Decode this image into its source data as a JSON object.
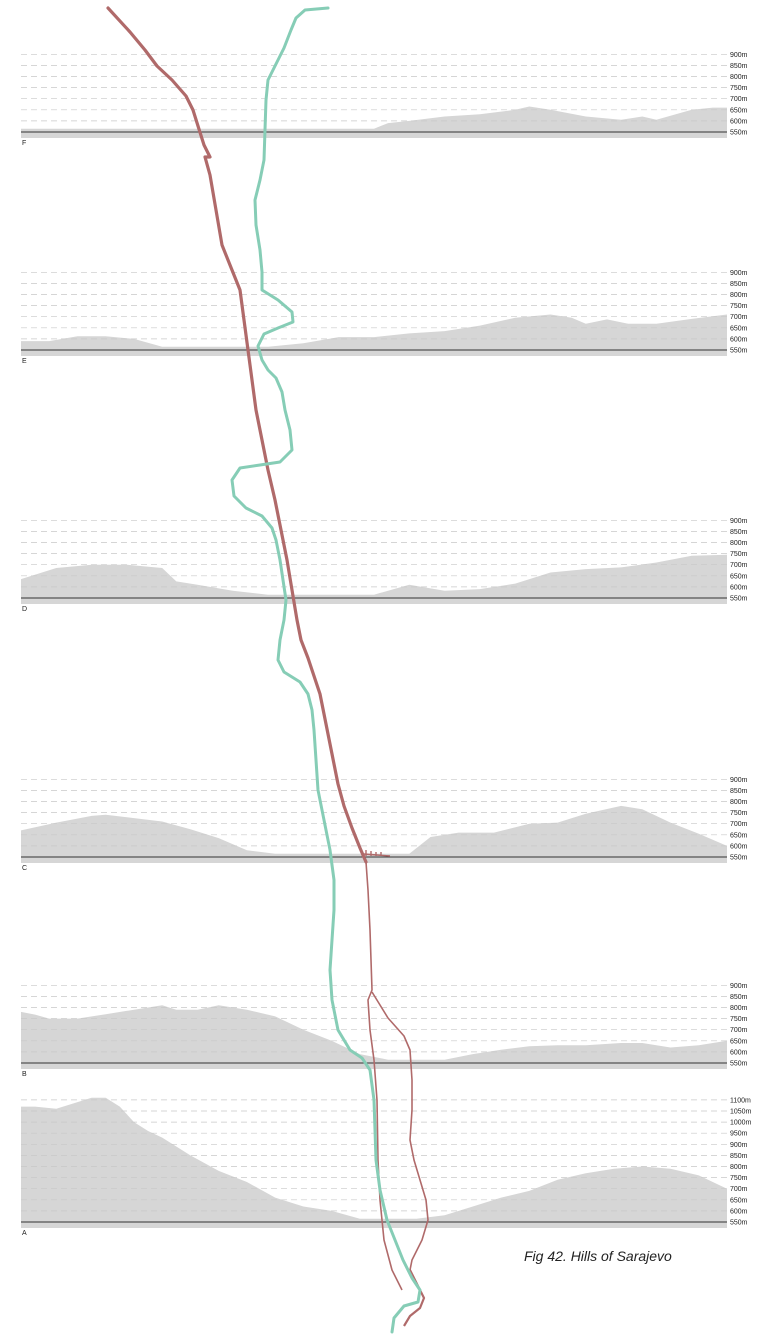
{
  "caption": "Fig 42. Hills of Sarajevo",
  "colors": {
    "terrain": "#d6d6d6",
    "grid": "#c8c8c8",
    "baseline": "#333333",
    "route_red": "#b06a6a",
    "route_green": "#86cdb6"
  },
  "chart_data": [
    {
      "type": "area",
      "label": "F",
      "y_ticks": [
        "900m",
        "850m",
        "800m",
        "750m",
        "700m",
        "650m",
        "600m",
        "550m"
      ],
      "ylim": [
        550,
        900
      ],
      "x": [
        0,
        5,
        10,
        15,
        20,
        25,
        30,
        35,
        40,
        45,
        50,
        52,
        55,
        60,
        65,
        70,
        72,
        75,
        80,
        85,
        88,
        90,
        95,
        98,
        100
      ],
      "elevation_m": [
        565,
        565,
        565,
        565,
        565,
        565,
        565,
        565,
        565,
        565,
        565,
        590,
        600,
        620,
        630,
        650,
        665,
        650,
        620,
        605,
        620,
        605,
        650,
        660,
        660
      ]
    },
    {
      "type": "area",
      "label": "E",
      "y_ticks": [
        "900m",
        "850m",
        "800m",
        "750m",
        "700m",
        "650m",
        "600m",
        "550m"
      ],
      "ylim": [
        550,
        900
      ],
      "x": [
        0,
        4,
        8,
        12,
        16,
        20,
        25,
        30,
        35,
        40,
        45,
        50,
        55,
        60,
        65,
        70,
        75,
        78,
        80,
        83,
        86,
        90,
        95,
        100
      ],
      "elevation_m": [
        590,
        590,
        612,
        612,
        600,
        565,
        565,
        565,
        565,
        580,
        608,
        608,
        625,
        635,
        660,
        695,
        710,
        695,
        668,
        688,
        668,
        668,
        690,
        710
      ]
    },
    {
      "type": "area",
      "label": "D",
      "y_ticks": [
        "900m",
        "850m",
        "800m",
        "750m",
        "700m",
        "650m",
        "600m",
        "550m"
      ],
      "ylim": [
        550,
        900
      ],
      "x": [
        0,
        5,
        10,
        15,
        20,
        22,
        25,
        30,
        35,
        40,
        45,
        50,
        55,
        60,
        65,
        70,
        75,
        80,
        85,
        90,
        95,
        100
      ],
      "elevation_m": [
        635,
        685,
        700,
        700,
        685,
        625,
        610,
        583,
        565,
        565,
        565,
        565,
        610,
        583,
        590,
        615,
        665,
        680,
        688,
        710,
        740,
        745
      ]
    },
    {
      "type": "area",
      "label": "C",
      "y_ticks": [
        "900m",
        "850m",
        "800m",
        "750m",
        "700m",
        "650m",
        "600m",
        "550m"
      ],
      "ylim": [
        550,
        900
      ],
      "x": [
        0,
        5,
        10,
        12,
        16,
        20,
        24,
        28,
        32,
        36,
        40,
        45,
        50,
        55,
        58,
        62,
        67,
        72,
        76,
        80,
        85,
        88,
        92,
        96,
        100
      ],
      "elevation_m": [
        670,
        705,
        735,
        740,
        725,
        710,
        675,
        635,
        580,
        565,
        565,
        565,
        565,
        565,
        640,
        660,
        660,
        700,
        705,
        745,
        780,
        765,
        705,
        655,
        600
      ]
    },
    {
      "type": "area",
      "label": "B",
      "y_ticks": [
        "900m",
        "850m",
        "800m",
        "750m",
        "700m",
        "650m",
        "600m",
        "550m"
      ],
      "ylim": [
        550,
        900
      ],
      "x": [
        0,
        2,
        4,
        8,
        12,
        16,
        20,
        22,
        25,
        28,
        32,
        36,
        40,
        44,
        48,
        52,
        56,
        60,
        64,
        68,
        72,
        76,
        80,
        85,
        88,
        92,
        96,
        100
      ],
      "elevation_m": [
        780,
        768,
        750,
        750,
        770,
        790,
        810,
        790,
        790,
        810,
        790,
        760,
        700,
        650,
        590,
        565,
        565,
        565,
        590,
        610,
        625,
        630,
        630,
        640,
        640,
        620,
        630,
        650
      ]
    },
    {
      "type": "area",
      "label": "A",
      "y_ticks": [
        "1100m",
        "1050m",
        "1000m",
        "950m",
        "900m",
        "850m",
        "800m",
        "750m",
        "700m",
        "650m",
        "600m",
        "550m"
      ],
      "ylim": [
        550,
        1100
      ],
      "x": [
        0,
        2,
        5,
        8,
        10,
        12,
        14,
        16,
        18,
        20,
        24,
        28,
        32,
        36,
        40,
        44,
        48,
        52,
        56,
        60,
        64,
        68,
        72,
        76,
        80,
        84,
        88,
        92,
        96,
        100
      ],
      "elevation_m": [
        1070,
        1070,
        1060,
        1090,
        1110,
        1110,
        1070,
        1000,
        960,
        930,
        850,
        780,
        730,
        660,
        620,
        600,
        565,
        565,
        565,
        580,
        620,
        660,
        690,
        740,
        770,
        790,
        800,
        790,
        760,
        700
      ]
    }
  ]
}
